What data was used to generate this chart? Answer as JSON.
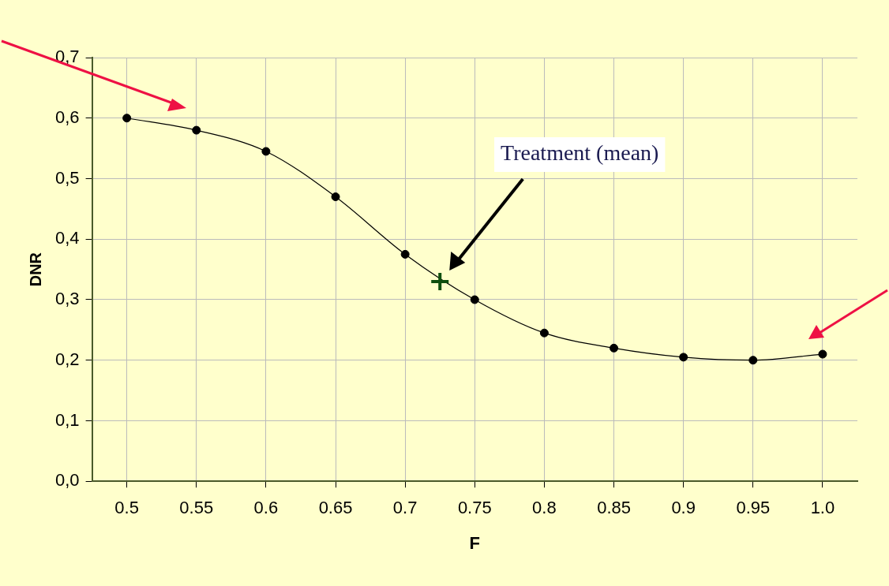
{
  "chart_data": {
    "type": "line",
    "xlabel": "F",
    "ylabel": "DNR",
    "x": [
      0.5,
      0.55,
      0.6,
      0.65,
      0.7,
      0.75,
      0.8,
      0.85,
      0.9,
      0.95,
      1.0
    ],
    "series": [
      {
        "color": "#000000",
        "marker": "circle",
        "values": [
          0.6,
          0.58,
          0.545,
          0.47,
          0.375,
          0.3,
          0.245,
          0.22,
          0.205,
          0.2,
          0.21
        ]
      },
      {
        "type": "scatter",
        "color": "#0f4f0f",
        "marker": "cross",
        "x": [
          0.725
        ],
        "values": [
          0.33
        ]
      }
    ],
    "xlim": [
      0.475,
      1.025
    ],
    "xticks": [
      0.5,
      0.55,
      0.6,
      0.65,
      0.7,
      0.75,
      0.8,
      0.85,
      0.9,
      0.95,
      {
        "value": 1.0,
        "label": "1.0"
      }
    ],
    "ylim": [
      0,
      0.7
    ],
    "yticks": [
      {
        "value": 0,
        "label": "0,0"
      },
      {
        "value": 0.1,
        "label": "0,1"
      },
      {
        "value": 0.2,
        "label": "0,2"
      },
      {
        "value": 0.3,
        "label": "0,3"
      },
      {
        "value": 0.4,
        "label": "0,4"
      },
      {
        "value": 0.5,
        "label": "0,5"
      },
      {
        "value": 0.6,
        "label": "0,6"
      },
      {
        "value": 0.7,
        "label": "0,7"
      }
    ],
    "grid": true,
    "legend": false,
    "annotations": [
      "Treatment (mean)"
    ]
  }
}
